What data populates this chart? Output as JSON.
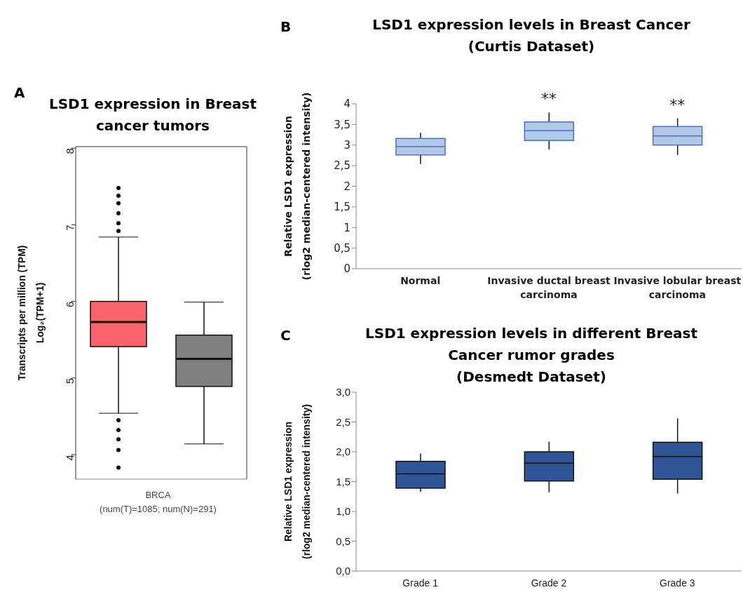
{
  "chart_data": [
    {
      "type": "box",
      "title": "LSD1 expression in Breast cancer tumors",
      "annotations": [
        "A"
      ],
      "categories": [
        null,
        null
      ],
      "xlabel": "BRCA\n(num(T)=1085; num(N)=291)",
      "ylabel": "Transcripts per million (TPM)\nLog₂(TPM+1)",
      "ylim": [
        3.68,
        8.02
      ],
      "yticks": [
        4,
        5,
        6,
        7,
        8
      ],
      "colors": [
        "#f8646a",
        "#808080"
      ],
      "boxes": [
        {
          "low": 4.54,
          "q1": 5.41,
          "median": 5.73,
          "q3": 6.0,
          "high": 6.84,
          "outliers": [
            7.48,
            7.38,
            7.28,
            7.15,
            7.02,
            6.92,
            4.45,
            4.32,
            4.2,
            4.06,
            3.83
          ]
        },
        {
          "low": 4.14,
          "q1": 4.89,
          "median": 5.25,
          "q3": 5.56,
          "high": 5.99
        }
      ]
    },
    {
      "type": "box",
      "title": "LSD1 expression levels in Breast Cancer\n(Curtis Dataset)",
      "annotations": [
        "B",
        "**",
        "**"
      ],
      "categories": [
        "Normal",
        "Invasive ductal breast carcinoma",
        "Invasive lobular breast carcinoma"
      ],
      "ylabel": "Relative LSD1 expression\n(rlog2 median-centered intensity)",
      "ylim": [
        0,
        4
      ],
      "yticks": [
        0,
        {
          "value": 0.5,
          "label": "0,5"
        },
        1,
        {
          "value": 1.5,
          "label": "1,5"
        },
        2,
        {
          "value": 2.5,
          "label": "2,5"
        },
        3,
        {
          "value": 3.5,
          "label": "3,5"
        },
        4
      ],
      "series": [
        {
          "color": "#b4c7e7",
          "boxes": [
            {
              "low": 2.54,
              "q1": 2.76,
              "median": 2.96,
              "q3": 3.16,
              "high": 3.3
            },
            {
              "low": 2.89,
              "q1": 3.11,
              "median": 3.35,
              "q3": 3.56,
              "high": 3.79
            },
            {
              "low": 2.76,
              "q1": 3.0,
              "median": 3.22,
              "q3": 3.45,
              "high": 3.65
            }
          ]
        }
      ]
    },
    {
      "type": "box",
      "title": "LSD1 expression levels in different Breast\nCancer rumor grades\n(Desmedt Dataset)",
      "annotations": [
        "C"
      ],
      "categories": [
        "Grade 1",
        "Grade 2",
        "Grade 3"
      ],
      "ylabel": "Relative LSD1 expression\n(rlog2 median-centered intensity)",
      "ylim": [
        0,
        3
      ],
      "yticks": [
        {
          "value": 0,
          "label": "0,0"
        },
        {
          "value": 0.5,
          "label": "0,5"
        },
        {
          "value": 1,
          "label": "1,0"
        },
        {
          "value": 1.5,
          "label": "1,5"
        },
        {
          "value": 2,
          "label": "2,0"
        },
        {
          "value": 2.5,
          "label": "2,5"
        },
        {
          "value": 3,
          "label": "3,0"
        }
      ],
      "series": [
        {
          "color": "#2f5597",
          "boxes": [
            {
              "low": 1.33,
              "q1": 1.39,
              "median": 1.63,
              "q3": 1.84,
              "high": 1.97
            },
            {
              "low": 1.32,
              "q1": 1.51,
              "median": 1.81,
              "q3": 2.0,
              "high": 2.17
            },
            {
              "low": 1.3,
              "q1": 1.54,
              "median": 1.92,
              "q3": 2.16,
              "high": 2.56
            }
          ]
        }
      ]
    }
  ]
}
